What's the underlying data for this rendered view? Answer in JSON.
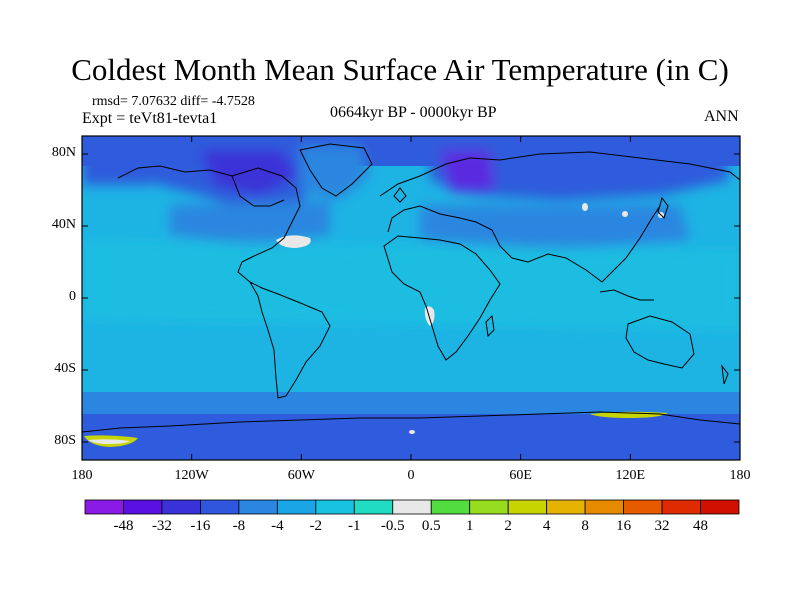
{
  "title": "Coldest Month Mean Surface Air Temperature (in C)",
  "stats": "rmsd= 7.07632 diff= -4.7528",
  "experiment": "Expt = teVt81-tevta1",
  "period": "0664kyr BP - 0000kyr BP",
  "season": "ANN",
  "lat_ticks": [
    {
      "label": "80N",
      "value": 80
    },
    {
      "label": "40N",
      "value": 40
    },
    {
      "label": "0",
      "value": 0
    },
    {
      "label": "40S",
      "value": -40
    },
    {
      "label": "80S",
      "value": -80
    }
  ],
  "lon_ticks": [
    {
      "label": "180",
      "value": -180
    },
    {
      "label": "120W",
      "value": -120
    },
    {
      "label": "60W",
      "value": -60
    },
    {
      "label": "0",
      "value": 0
    },
    {
      "label": "60E",
      "value": 60
    },
    {
      "label": "120E",
      "value": 120
    },
    {
      "label": "180",
      "value": 180
    }
  ],
  "colorbar": {
    "labels": [
      "-48",
      "-32",
      "-16",
      "-8",
      "-4",
      "-2",
      "-1",
      "-0.5",
      "0.5",
      "1",
      "2",
      "4",
      "8",
      "16",
      "32",
      "48"
    ],
    "colors": [
      "#8a1ae6",
      "#5a10e0",
      "#3a32d8",
      "#2f56dd",
      "#2a86e0",
      "#1aa6e6",
      "#19c2e0",
      "#20dcc2",
      "#e8e8e8",
      "#52dc40",
      "#98dc20",
      "#c8d400",
      "#e6b400",
      "#e68a00",
      "#e65a00",
      "#e02a00",
      "#d01000"
    ]
  },
  "colors": {
    "ocean_base": "#1db4e4",
    "cold_high_lat": "#2f5cdc",
    "very_cold": "#5a2ce0",
    "moderate_cold": "#2a86e0",
    "near_zero": "#e8e8e8",
    "warm_patch": "#c8d400"
  }
}
